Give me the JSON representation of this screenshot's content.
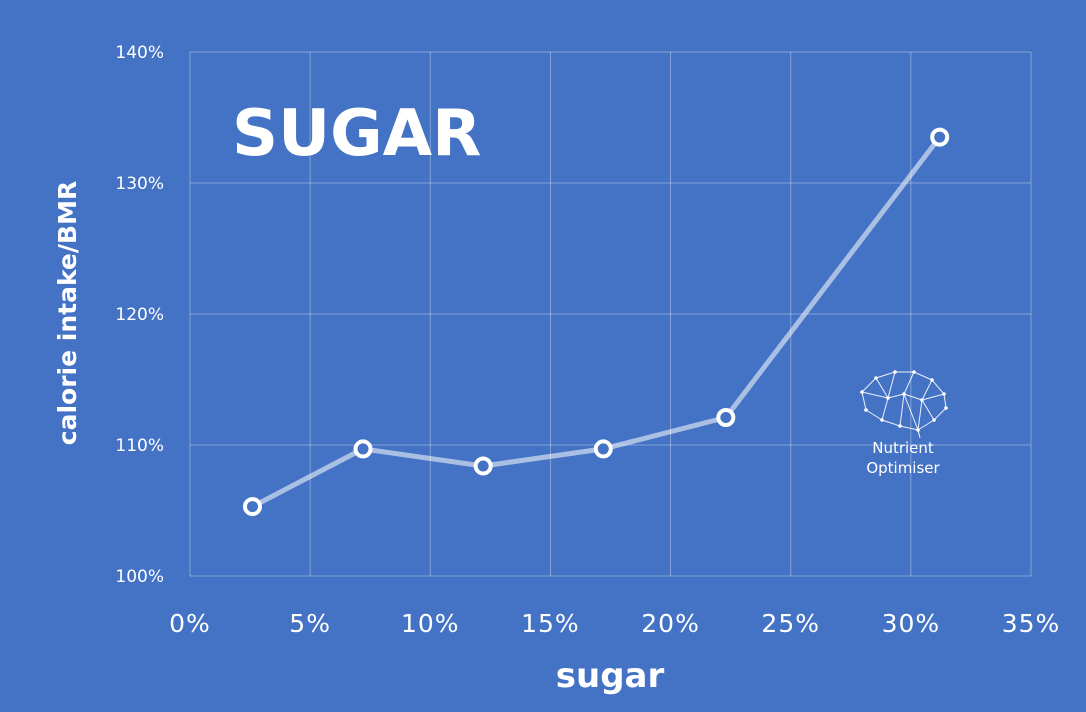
{
  "chart_data": {
    "type": "line",
    "title": "SUGAR",
    "xlabel": "sugar",
    "ylabel": "calorie intake/BMR",
    "xlim": [
      0,
      35
    ],
    "ylim": [
      100,
      140
    ],
    "x_ticks": [
      "0%",
      "5%",
      "10%",
      "15%",
      "20%",
      "25%",
      "30%",
      "35%"
    ],
    "y_ticks": [
      "100%",
      "110%",
      "120%",
      "130%",
      "140%"
    ],
    "grid": true,
    "series": [
      {
        "x": [
          2.6,
          7.2,
          12.2,
          17.2,
          22.3,
          31.2
        ],
        "y": [
          105.3,
          109.7,
          108.4,
          109.7,
          112.1,
          133.5
        ]
      }
    ]
  },
  "logo": {
    "line1": "Nutrient",
    "line2": "Optimiser",
    "icon": "brain-network-icon"
  },
  "colors": {
    "background": "#4472C4",
    "series": "#FFFFFF"
  }
}
